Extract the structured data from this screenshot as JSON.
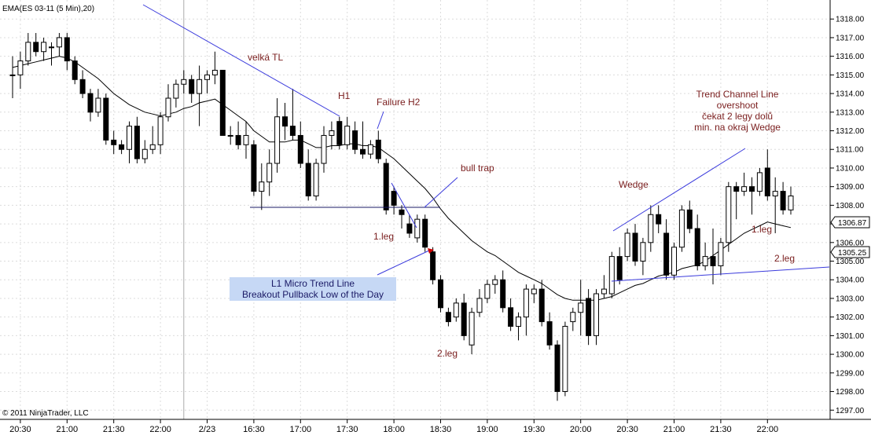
{
  "chart_data": {
    "type": "candlestick",
    "title": "EMA(ES 03-11 (5 Min),20)",
    "copyright": "© 2011 NinjaTrader, LLC",
    "ylim": [
      1296.8,
      1318.6
    ],
    "y_ticks": [
      1297,
      1298,
      1299,
      1300,
      1301,
      1302,
      1303,
      1304,
      1305,
      1306,
      1307,
      1308,
      1309,
      1310,
      1311,
      1312,
      1313,
      1314,
      1315,
      1316,
      1317,
      1318
    ],
    "x_ticks": [
      {
        "i": 1,
        "label": "20:30"
      },
      {
        "i": 7,
        "label": "21:00"
      },
      {
        "i": 13,
        "label": "21:30"
      },
      {
        "i": 19,
        "label": "22:00"
      },
      {
        "i": 25,
        "label": "2/23"
      },
      {
        "i": 31,
        "label": "16:30"
      },
      {
        "i": 37,
        "label": "17:00"
      },
      {
        "i": 43,
        "label": "17:30"
      },
      {
        "i": 49,
        "label": "18:00"
      },
      {
        "i": 55,
        "label": "18:30"
      },
      {
        "i": 61,
        "label": "19:00"
      },
      {
        "i": 67,
        "label": "19:30"
      },
      {
        "i": 73,
        "label": "20:00"
      },
      {
        "i": 79,
        "label": "20:30"
      },
      {
        "i": 85,
        "label": "21:00"
      },
      {
        "i": 91,
        "label": "21:30"
      },
      {
        "i": 97,
        "label": "22:00"
      }
    ],
    "session_break_index": 22,
    "bar_count": 101,
    "last_price": "1306.87",
    "last_price_2": "1305.25",
    "candles": [
      [
        1315.0,
        1316.0,
        1313.75,
        1315.0
      ],
      [
        1315.0,
        1316.25,
        1314.25,
        1315.75
      ],
      [
        1315.75,
        1317.25,
        1315.5,
        1316.75
      ],
      [
        1316.75,
        1317.25,
        1316.0,
        1316.25
      ],
      [
        1316.25,
        1317.0,
        1315.75,
        1316.75
      ],
      [
        1316.5,
        1316.75,
        1315.5,
        1316.5
      ],
      [
        1316.5,
        1317.25,
        1316.0,
        1317.0
      ],
      [
        1317.0,
        1317.25,
        1315.25,
        1315.75
      ],
      [
        1315.75,
        1316.0,
        1314.5,
        1314.75
      ],
      [
        1314.75,
        1315.25,
        1313.75,
        1314.0
      ],
      [
        1314.0,
        1314.25,
        1312.5,
        1313.0
      ],
      [
        1313.0,
        1314.25,
        1312.75,
        1313.75
      ],
      [
        1313.75,
        1314.0,
        1311.25,
        1311.5
      ],
      [
        1311.5,
        1312.0,
        1310.75,
        1311.25
      ],
      [
        1311.25,
        1311.5,
        1310.75,
        1311.0
      ],
      [
        1311.0,
        1312.5,
        1310.25,
        1312.25
      ],
      [
        1312.25,
        1312.75,
        1310.25,
        1310.5
      ],
      [
        1310.5,
        1311.5,
        1310.25,
        1311.0
      ],
      [
        1311.0,
        1312.25,
        1310.75,
        1311.25
      ],
      [
        1311.25,
        1313.0,
        1310.75,
        1312.75
      ],
      [
        1312.75,
        1314.5,
        1312.5,
        1313.75
      ],
      [
        1313.75,
        1314.75,
        1313.25,
        1314.5
      ],
      [
        1314.5,
        1315.25,
        1314.0,
        1314.75
      ],
      [
        1314.75,
        1315.0,
        1313.5,
        1314.0
      ],
      [
        1314.0,
        1315.5,
        1312.25,
        1314.75
      ],
      [
        1314.75,
        1315.25,
        1314.0,
        1315.0
      ],
      [
        1315.0,
        1316.25,
        1314.5,
        1315.25
      ],
      [
        1315.25,
        1315.25,
        1311.75,
        1311.75
      ],
      [
        1311.75,
        1312.25,
        1311.25,
        1311.75
      ],
      [
        1311.75,
        1312.5,
        1311.0,
        1311.25
      ],
      [
        1311.25,
        1312.5,
        1310.5,
        1311.75
      ],
      [
        1311.25,
        1311.5,
        1308.5,
        1308.75
      ],
      [
        1308.75,
        1310.25,
        1307.75,
        1309.25
      ],
      [
        1309.25,
        1311.0,
        1308.5,
        1310.25
      ],
      [
        1310.25,
        1313.75,
        1309.75,
        1312.75
      ],
      [
        1312.75,
        1313.5,
        1311.5,
        1312.25
      ],
      [
        1312.25,
        1314.25,
        1311.5,
        1311.75
      ],
      [
        1311.75,
        1312.5,
        1310.0,
        1310.25
      ],
      [
        1310.25,
        1311.0,
        1308.25,
        1308.5
      ],
      [
        1308.5,
        1310.5,
        1308.25,
        1310.25
      ],
      [
        1310.25,
        1312.25,
        1309.75,
        1311.75
      ],
      [
        1311.75,
        1312.5,
        1311.0,
        1312.0
      ],
      [
        1312.5,
        1312.75,
        1311.0,
        1311.25
      ],
      [
        1311.25,
        1312.75,
        1311.0,
        1312.25
      ],
      [
        1312.0,
        1312.5,
        1310.75,
        1311.0
      ],
      [
        1311.0,
        1312.5,
        1310.5,
        1310.75
      ],
      [
        1310.75,
        1311.5,
        1310.5,
        1311.25
      ],
      [
        1311.5,
        1312.0,
        1310.25,
        1310.5
      ],
      [
        1310.25,
        1310.5,
        1307.5,
        1307.75
      ],
      [
        1308.75,
        1309.0,
        1307.5,
        1308.0
      ],
      [
        1307.75,
        1308.0,
        1306.75,
        1307.5
      ],
      [
        1307.0,
        1307.5,
        1306.25,
        1306.5
      ],
      [
        1306.25,
        1307.5,
        1306.0,
        1307.25
      ],
      [
        1307.25,
        1307.5,
        1305.5,
        1305.75
      ],
      [
        1305.5,
        1305.75,
        1303.75,
        1304.0
      ],
      [
        1304.0,
        1304.25,
        1302.25,
        1302.5
      ],
      [
        1302.25,
        1302.5,
        1301.5,
        1301.75
      ],
      [
        1302.0,
        1303.0,
        1301.75,
        1302.75
      ],
      [
        1302.75,
        1303.25,
        1300.75,
        1301.0
      ],
      [
        1300.5,
        1302.5,
        1300.0,
        1302.25
      ],
      [
        1302.25,
        1303.5,
        1302.0,
        1303.0
      ],
      [
        1303.0,
        1304.0,
        1302.75,
        1303.75
      ],
      [
        1303.75,
        1304.25,
        1303.25,
        1304.0
      ],
      [
        1304.0,
        1304.5,
        1302.25,
        1302.5
      ],
      [
        1302.5,
        1303.0,
        1301.25,
        1301.5
      ],
      [
        1301.5,
        1302.25,
        1300.75,
        1302.0
      ],
      [
        1302.0,
        1303.75,
        1301.0,
        1303.5
      ],
      [
        1303.25,
        1303.75,
        1302.75,
        1303.5
      ],
      [
        1303.5,
        1304.0,
        1301.5,
        1301.75
      ],
      [
        1301.75,
        1302.25,
        1300.25,
        1300.5
      ],
      [
        1300.5,
        1300.75,
        1297.5,
        1298.0
      ],
      [
        1298.0,
        1301.75,
        1297.75,
        1301.5
      ],
      [
        1301.75,
        1302.5,
        1301.25,
        1302.25
      ],
      [
        1302.25,
        1304.0,
        1301.0,
        1302.75
      ],
      [
        1303.0,
        1303.5,
        1300.5,
        1301.0
      ],
      [
        1301.0,
        1303.5,
        1300.5,
        1303.25
      ],
      [
        1303.25,
        1304.25,
        1303.0,
        1303.5
      ],
      [
        1303.25,
        1305.5,
        1303.0,
        1305.25
      ],
      [
        1305.25,
        1305.75,
        1303.75,
        1304.0
      ],
      [
        1305.25,
        1306.75,
        1305.0,
        1306.5
      ],
      [
        1306.5,
        1307.0,
        1304.75,
        1305.0
      ],
      [
        1305.0,
        1306.25,
        1304.25,
        1306.0
      ],
      [
        1306.0,
        1308.0,
        1305.5,
        1307.5
      ],
      [
        1307.5,
        1308.0,
        1306.5,
        1307.0
      ],
      [
        1306.5,
        1307.25,
        1304.0,
        1304.25
      ],
      [
        1304.25,
        1306.0,
        1304.0,
        1305.75
      ],
      [
        1305.75,
        1308.0,
        1305.5,
        1307.75
      ],
      [
        1307.75,
        1308.25,
        1306.5,
        1306.75
      ],
      [
        1306.75,
        1307.5,
        1304.5,
        1304.75
      ],
      [
        1304.75,
        1306.0,
        1304.5,
        1305.25
      ],
      [
        1305.25,
        1306.75,
        1303.75,
        1304.75
      ],
      [
        1304.75,
        1306.25,
        1304.25,
        1306.0
      ],
      [
        1306.0,
        1309.25,
        1305.5,
        1309.0
      ],
      [
        1309.0,
        1309.25,
        1307.25,
        1308.75
      ],
      [
        1308.75,
        1309.75,
        1308.5,
        1309.0
      ],
      [
        1309.0,
        1309.5,
        1307.5,
        1308.75
      ],
      [
        1308.75,
        1310.0,
        1308.5,
        1309.75
      ],
      [
        1310.0,
        1311.0,
        1308.25,
        1308.5
      ],
      [
        1308.5,
        1309.5,
        1306.5,
        1308.75
      ],
      [
        1308.75,
        1309.25,
        1307.5,
        1307.75
      ],
      [
        1307.75,
        1309.0,
        1307.5,
        1308.5
      ]
    ],
    "ema": [
      1315.4,
      1315.5,
      1315.6,
      1315.7,
      1315.8,
      1315.9,
      1316.0,
      1315.9,
      1315.7,
      1315.4,
      1315.1,
      1314.8,
      1314.4,
      1314.0,
      1313.7,
      1313.4,
      1313.2,
      1313.0,
      1312.9,
      1312.8,
      1312.9,
      1313.0,
      1313.2,
      1313.3,
      1313.5,
      1313.6,
      1313.7,
      1313.4,
      1313.1,
      1312.8,
      1312.5,
      1312.0,
      1311.7,
      1311.4,
      1311.4,
      1311.4,
      1311.5,
      1311.5,
      1311.3,
      1311.1,
      1311.1,
      1311.2,
      1311.2,
      1311.3,
      1311.3,
      1311.2,
      1311.2,
      1311.1,
      1310.8,
      1310.5,
      1310.1,
      1309.7,
      1309.3,
      1308.9,
      1308.4,
      1307.8,
      1307.3,
      1306.9,
      1306.5,
      1306.1,
      1305.8,
      1305.5,
      1305.3,
      1305.0,
      1304.7,
      1304.4,
      1304.2,
      1304.0,
      1303.8,
      1303.5,
      1303.2,
      1303.0,
      1302.9,
      1302.9,
      1302.9,
      1302.9,
      1303.0,
      1303.1,
      1303.3,
      1303.5,
      1303.7,
      1303.8,
      1304.0,
      1304.2,
      1304.3,
      1304.4,
      1304.6,
      1304.7,
      1304.8,
      1305.0,
      1305.3,
      1305.6,
      1305.9,
      1306.2,
      1306.5,
      1306.7,
      1306.9,
      1307.1,
      1307.0,
      1306.9,
      1306.8
    ]
  },
  "annotations": {
    "velka_tl": "velká TL",
    "h1": "H1",
    "failure_h2": "Failure H2",
    "bull_trap": "bull trap",
    "leg1_left": "1.leg",
    "leg2_left": "2.leg",
    "l1_line1": "L1 Micro Trend Line",
    "l1_line2": "Breakout Pullback Low of the Day",
    "wedge": "Wedge",
    "tcl_1": "Trend Channel Line",
    "tcl_2": "overshoot",
    "tcl_3": "čekat 2 legy dolů",
    "tcl_4": "min. na okraj Wedge",
    "leg1_right": "1.leg",
    "leg2_right": "2.leg"
  },
  "colors": {
    "trendline": "#3a3adc",
    "annotation": "#7a1e1e",
    "box_fill": "#c6d8f5",
    "ema": "#000000",
    "up_body": "#ffffff",
    "down_body": "#000000"
  }
}
